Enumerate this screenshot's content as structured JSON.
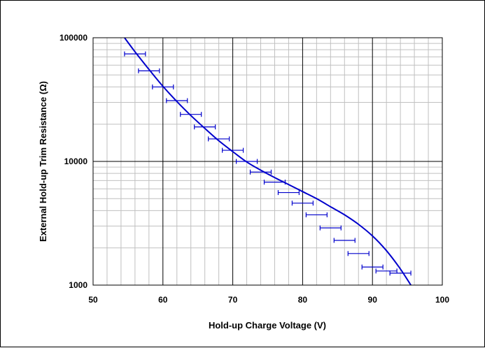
{
  "chart_data": {
    "type": "line",
    "xlabel": "Hold-up Charge Voltage (V)",
    "ylabel": "External Hold-up Trim Resistance (Ω)",
    "xlim": [
      50,
      100
    ],
    "ylim": [
      1000,
      100000
    ],
    "yscale": "log",
    "grid": true,
    "x_ticks": [
      "50",
      "60",
      "70",
      "80",
      "90",
      "100"
    ],
    "y_ticks": [
      "1000",
      "10000",
      "100000"
    ],
    "colors": {
      "series": "#0000cc",
      "major_grid": "#000000",
      "minor_grid": "#c0c0c0"
    },
    "series": [
      {
        "x": [
          54.5,
          56,
          58,
          60,
          62,
          64,
          66,
          68,
          70,
          72,
          74,
          76,
          78,
          80,
          82,
          84,
          86,
          88,
          90,
          92,
          94,
          95.5
        ],
        "y": [
          100000,
          77000,
          55500,
          40500,
          30500,
          23500,
          18500,
          14700,
          12000,
          9900,
          8500,
          7400,
          6500,
          5700,
          5000,
          4300,
          3700,
          3100,
          2500,
          1900,
          1350,
          1000
        ]
      }
    ],
    "error_bars": {
      "x": [
        56.0,
        58.0,
        60.0,
        62.0,
        64.0,
        66.0,
        68.0,
        70.0,
        72.0,
        74.0,
        76.0,
        78.0,
        80.0,
        82.0,
        84.0,
        86.0,
        88.0,
        90.0,
        92.0,
        94.0
      ],
      "y": [
        74000,
        54000,
        40000,
        31000,
        24000,
        19000,
        15200,
        12300,
        10000,
        8200,
        6800,
        5600,
        4600,
        3700,
        2900,
        2300,
        1800,
        1400,
        1300,
        1250
      ],
      "x_err": 1.5
    }
  }
}
